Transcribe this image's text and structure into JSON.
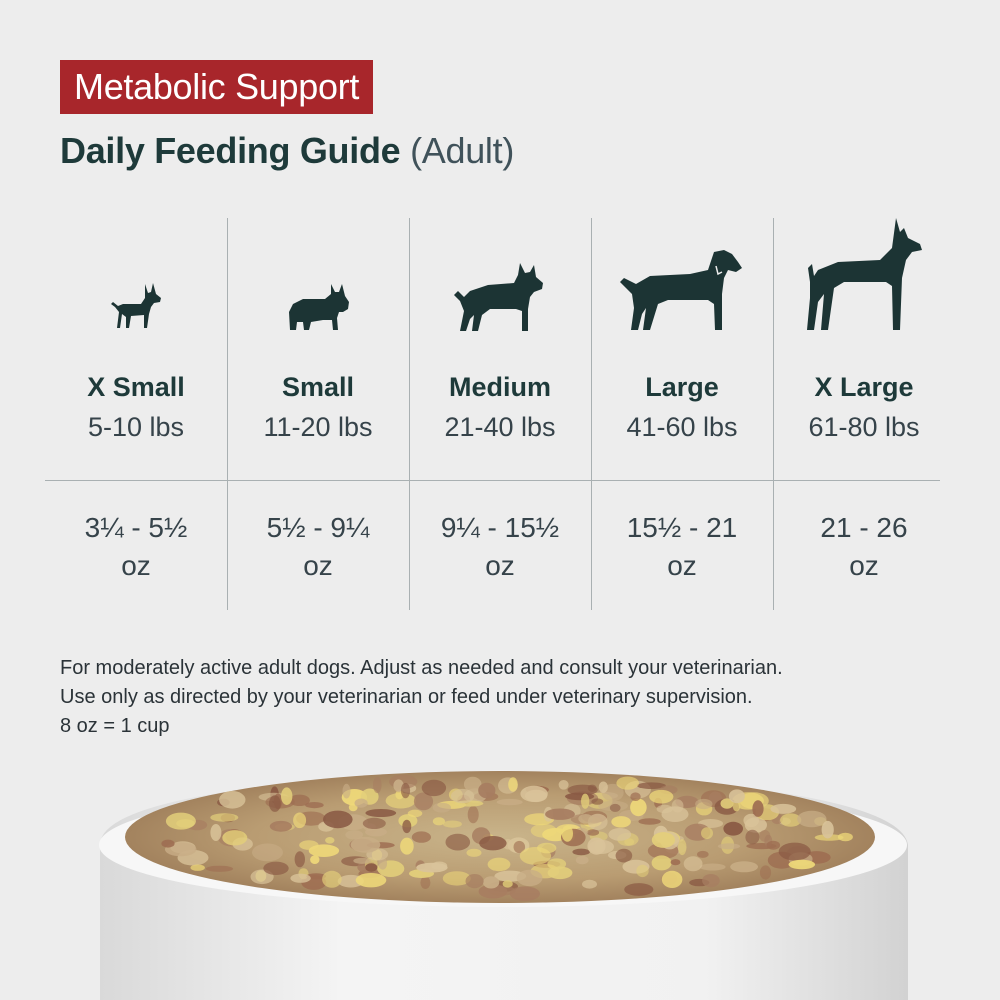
{
  "colors": {
    "badge_bg": "#a8262b",
    "title_text": "#1e3a3a",
    "sub_text": "#40525a",
    "dog_fill": "#1c3434",
    "body_text": "#36434a"
  },
  "badge": {
    "label": "Metabolic Support"
  },
  "title": {
    "main": "Daily Feeding Guide",
    "sub": "(Adult)"
  },
  "sizes": [
    {
      "icon": "chihuahua-icon",
      "name": "X Small",
      "range": "5-10 lbs",
      "amount_line1": "3¼ - 5½",
      "amount_line2": "oz"
    },
    {
      "icon": "french-bulldog-icon",
      "name": "Small",
      "range": "11-20 lbs",
      "amount_line1": "5½ - 9¼",
      "amount_line2": "oz"
    },
    {
      "icon": "pitbull-icon",
      "name": "Medium",
      "range": "21-40 lbs",
      "amount_line1": "9¼ - 15½",
      "amount_line2": "oz"
    },
    {
      "icon": "labrador-icon",
      "name": "Large",
      "range": "41-60 lbs",
      "amount_line1": "15½ - 21",
      "amount_line2": "oz"
    },
    {
      "icon": "great-dane-icon",
      "name": "X Large",
      "range": "61-80 lbs",
      "amount_line1": "21 - 26",
      "amount_line2": "oz"
    }
  ],
  "notes": [
    "For moderately active adult dogs. Adjust as needed and consult your veterinarian.",
    "Use only as directed by your veterinarian or feed under veterinary supervision.",
    "8 oz = 1 cup"
  ]
}
